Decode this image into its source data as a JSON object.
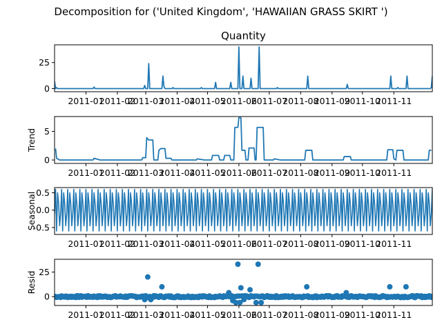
{
  "chart_data": {
    "type": "line",
    "suptitle": "Decomposition for ('United Kingdom', 'HAWAIIAN GRASS SKIRT ')",
    "x_tick_labels": [
      "2011-01",
      "2011-02",
      "2011-03",
      "2011-04",
      "2011-05",
      "2011-06",
      "2011-07",
      "2011-08",
      "2011-09",
      "2011-10",
      "2011-11"
    ],
    "x_range": [
      "2010-12-01",
      "2011-12-09"
    ],
    "line_color": "#1f77b4",
    "panels": [
      {
        "name": "quantity",
        "type": "line",
        "title": "Quantity",
        "ylabel": "",
        "ylim": [
          -3,
          42
        ],
        "yticks": [
          0,
          25
        ],
        "points": [
          [
            "2010-12-01",
            7
          ],
          [
            "2010-12-02",
            0
          ],
          [
            "2010-12-03",
            1
          ],
          [
            "2010-12-04",
            0
          ],
          [
            "2011-01-08",
            0
          ],
          [
            "2011-01-09",
            1.5
          ],
          [
            "2011-01-10",
            0
          ],
          [
            "2011-02-27",
            0
          ],
          [
            "2011-02-28",
            3
          ],
          [
            "2011-03-01",
            0
          ],
          [
            "2011-03-03",
            0
          ],
          [
            "2011-03-04",
            24
          ],
          [
            "2011-03-05",
            0
          ],
          [
            "2011-03-17",
            0
          ],
          [
            "2011-03-18",
            12
          ],
          [
            "2011-03-19",
            2
          ],
          [
            "2011-03-20",
            0
          ],
          [
            "2011-03-27",
            0
          ],
          [
            "2011-03-28",
            1
          ],
          [
            "2011-03-29",
            0
          ],
          [
            "2011-04-24",
            0
          ],
          [
            "2011-04-25",
            1
          ],
          [
            "2011-04-26",
            0
          ],
          [
            "2011-05-08",
            0
          ],
          [
            "2011-05-09",
            6
          ],
          [
            "2011-05-10",
            0
          ],
          [
            "2011-05-23",
            0
          ],
          [
            "2011-05-24",
            6
          ],
          [
            "2011-05-25",
            0
          ],
          [
            "2011-05-31",
            0
          ],
          [
            "2011-06-01",
            40
          ],
          [
            "2011-06-02",
            0
          ],
          [
            "2011-06-04",
            0
          ],
          [
            "2011-06-05",
            12
          ],
          [
            "2011-06-06",
            0
          ],
          [
            "2011-06-12",
            0
          ],
          [
            "2011-06-13",
            10
          ],
          [
            "2011-06-14",
            0
          ],
          [
            "2011-06-20",
            0
          ],
          [
            "2011-06-21",
            40
          ],
          [
            "2011-06-22",
            0
          ],
          [
            "2011-07-08",
            0
          ],
          [
            "2011-07-09",
            1
          ],
          [
            "2011-07-10",
            0
          ],
          [
            "2011-08-07",
            0
          ],
          [
            "2011-08-08",
            12
          ],
          [
            "2011-08-09",
            0
          ],
          [
            "2011-09-15",
            0
          ],
          [
            "2011-09-16",
            4
          ],
          [
            "2011-09-17",
            0
          ],
          [
            "2011-10-28",
            0
          ],
          [
            "2011-10-29",
            12
          ],
          [
            "2011-10-30",
            0
          ],
          [
            "2011-11-04",
            0
          ],
          [
            "2011-11-05",
            1
          ],
          [
            "2011-11-06",
            0
          ],
          [
            "2011-11-13",
            0
          ],
          [
            "2011-11-14",
            12
          ],
          [
            "2011-11-15",
            0
          ],
          [
            "2011-12-07",
            0
          ],
          [
            "2011-12-08",
            1
          ],
          [
            "2011-12-09",
            12
          ]
        ]
      },
      {
        "name": "trend",
        "type": "step",
        "title": "",
        "ylabel": "Trend",
        "ylim": [
          -0.6,
          7.6
        ],
        "yticks": [
          0,
          5
        ],
        "points": [
          [
            "2010-12-02",
            2
          ],
          [
            "2010-12-03",
            0.3
          ],
          [
            "2010-12-06",
            0
          ],
          [
            "2011-01-08",
            0
          ],
          [
            "2011-01-09",
            0.3
          ],
          [
            "2011-01-15",
            0
          ],
          [
            "2011-02-25",
            0
          ],
          [
            "2011-02-26",
            0.4
          ],
          [
            "2011-03-01",
            0.4
          ],
          [
            "2011-03-02",
            3.9
          ],
          [
            "2011-03-04",
            3.5
          ],
          [
            "2011-03-08",
            3.5
          ],
          [
            "2011-03-09",
            0
          ],
          [
            "2011-03-13",
            0
          ],
          [
            "2011-03-14",
            1.7
          ],
          [
            "2011-03-16",
            2
          ],
          [
            "2011-03-20",
            2
          ],
          [
            "2011-03-21",
            0.3
          ],
          [
            "2011-03-26",
            0.3
          ],
          [
            "2011-03-27",
            0
          ],
          [
            "2011-04-20",
            0
          ],
          [
            "2011-04-21",
            0.2
          ],
          [
            "2011-04-28",
            0
          ],
          [
            "2011-05-05",
            0
          ],
          [
            "2011-05-06",
            0.8
          ],
          [
            "2011-05-12",
            0.8
          ],
          [
            "2011-05-13",
            0
          ],
          [
            "2011-05-17",
            0
          ],
          [
            "2011-05-18",
            0.8
          ],
          [
            "2011-05-23",
            0.8
          ],
          [
            "2011-05-24",
            0
          ],
          [
            "2011-05-27",
            0
          ],
          [
            "2011-05-28",
            5.7
          ],
          [
            "2011-05-31",
            5.7
          ],
          [
            "2011-06-01",
            7.4
          ],
          [
            "2011-06-03",
            7.4
          ],
          [
            "2011-06-04",
            1.7
          ],
          [
            "2011-06-07",
            1.7
          ],
          [
            "2011-06-08",
            0
          ],
          [
            "2011-06-10",
            0
          ],
          [
            "2011-06-11",
            2.1
          ],
          [
            "2011-06-16",
            2.1
          ],
          [
            "2011-06-17",
            0
          ],
          [
            "2011-06-18",
            0
          ],
          [
            "2011-06-19",
            5.7
          ],
          [
            "2011-06-25",
            5.7
          ],
          [
            "2011-06-26",
            0
          ],
          [
            "2011-07-05",
            0
          ],
          [
            "2011-07-06",
            0.2
          ],
          [
            "2011-07-12",
            0
          ],
          [
            "2011-08-05",
            0
          ],
          [
            "2011-08-06",
            1.7
          ],
          [
            "2011-08-12",
            1.7
          ],
          [
            "2011-08-13",
            0
          ],
          [
            "2011-09-12",
            0
          ],
          [
            "2011-09-13",
            0.6
          ],
          [
            "2011-09-19",
            0.6
          ],
          [
            "2011-09-20",
            0
          ],
          [
            "2011-10-25",
            0
          ],
          [
            "2011-10-26",
            1.8
          ],
          [
            "2011-10-31",
            1.8
          ],
          [
            "2011-11-01",
            0.2
          ],
          [
            "2011-11-03",
            0
          ],
          [
            "2011-11-04",
            1.7
          ],
          [
            "2011-11-10",
            1.7
          ],
          [
            "2011-11-11",
            0
          ],
          [
            "2011-12-05",
            0
          ],
          [
            "2011-12-06",
            1.7
          ],
          [
            "2011-12-08",
            1.7
          ]
        ]
      },
      {
        "name": "seasonal",
        "type": "periodic",
        "title": "",
        "ylabel": "Seasonal",
        "ylim": [
          -0.7,
          0.65
        ],
        "yticks": [
          0.5,
          0.0,
          -0.5
        ],
        "period_days": 6,
        "start": "2010-12-01",
        "end": "2011-12-09",
        "pattern": [
          -0.1,
          0.6,
          -0.6,
          0.5,
          0.2,
          -0.45
        ]
      },
      {
        "name": "resid",
        "type": "scatter",
        "title": "",
        "ylabel": "Resid",
        "ylim": [
          -9,
          38
        ],
        "yticks": [
          0,
          25
        ],
        "baseline_noise": 0.9,
        "outliers": [
          [
            "2011-03-03",
            20
          ],
          [
            "2011-03-17",
            10
          ],
          [
            "2011-05-22",
            4
          ],
          [
            "2011-05-31",
            33
          ],
          [
            "2011-06-03",
            9
          ],
          [
            "2011-06-12",
            7
          ],
          [
            "2011-06-20",
            33
          ],
          [
            "2011-08-07",
            10
          ],
          [
            "2011-09-15",
            4
          ],
          [
            "2011-10-28",
            10
          ],
          [
            "2011-11-13",
            10
          ],
          [
            "2011-05-29",
            -6
          ],
          [
            "2011-06-02",
            -6
          ],
          [
            "2011-06-18",
            -6
          ],
          [
            "2011-06-23",
            -6
          ],
          [
            "2011-02-28",
            -3
          ],
          [
            "2011-03-06",
            -3
          ],
          [
            "2011-05-26",
            -4
          ],
          [
            "2011-06-06",
            -3
          ]
        ]
      }
    ]
  }
}
